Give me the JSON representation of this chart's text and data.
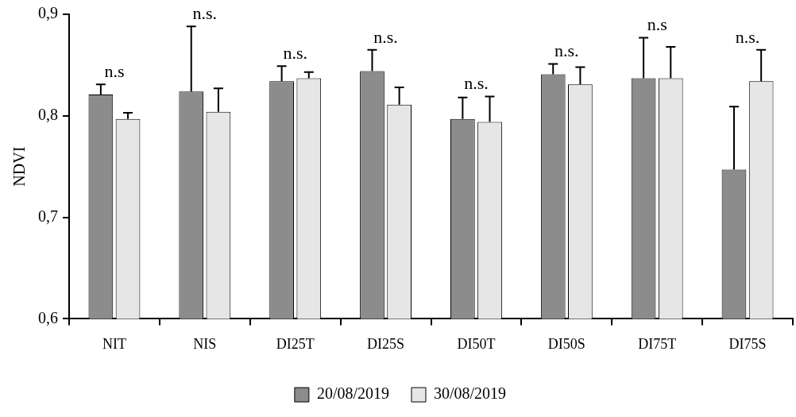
{
  "chart_data": {
    "type": "bar",
    "ylabel": "NDVI",
    "categories": [
      "NIT",
      "NIS",
      "DI25T",
      "DI25S",
      "DI50T",
      "DI50S",
      "DI75T",
      "DI75S"
    ],
    "series": [
      {
        "name": "20/08/2019",
        "color": "#8c8c8c",
        "values": [
          0.821,
          0.824,
          0.834,
          0.844,
          0.797,
          0.841,
          0.837,
          0.747
        ],
        "errors": [
          0.01,
          0.064,
          0.015,
          0.021,
          0.021,
          0.01,
          0.04,
          0.062
        ]
      },
      {
        "name": "30/08/2019",
        "color": "#e6e6e6",
        "values": [
          0.797,
          0.804,
          0.837,
          0.811,
          0.794,
          0.831,
          0.837,
          0.834
        ],
        "errors": [
          0.006,
          0.023,
          0.006,
          0.017,
          0.025,
          0.017,
          0.031,
          0.031
        ]
      }
    ],
    "ylim": [
      0.6,
      0.9
    ],
    "yticks": [
      {
        "value": 0.6,
        "label": "0,6"
      },
      {
        "value": 0.7,
        "label": "0,7"
      },
      {
        "value": 0.8,
        "label": "0,8"
      },
      {
        "value": 0.9,
        "label": "0,9"
      }
    ],
    "grid": false,
    "legend": "bottom",
    "annotations": [
      "n.s",
      "n.s.",
      "n.s.",
      "n.s.",
      "n.s.",
      "n.s.",
      "n.s",
      "n.s."
    ]
  }
}
